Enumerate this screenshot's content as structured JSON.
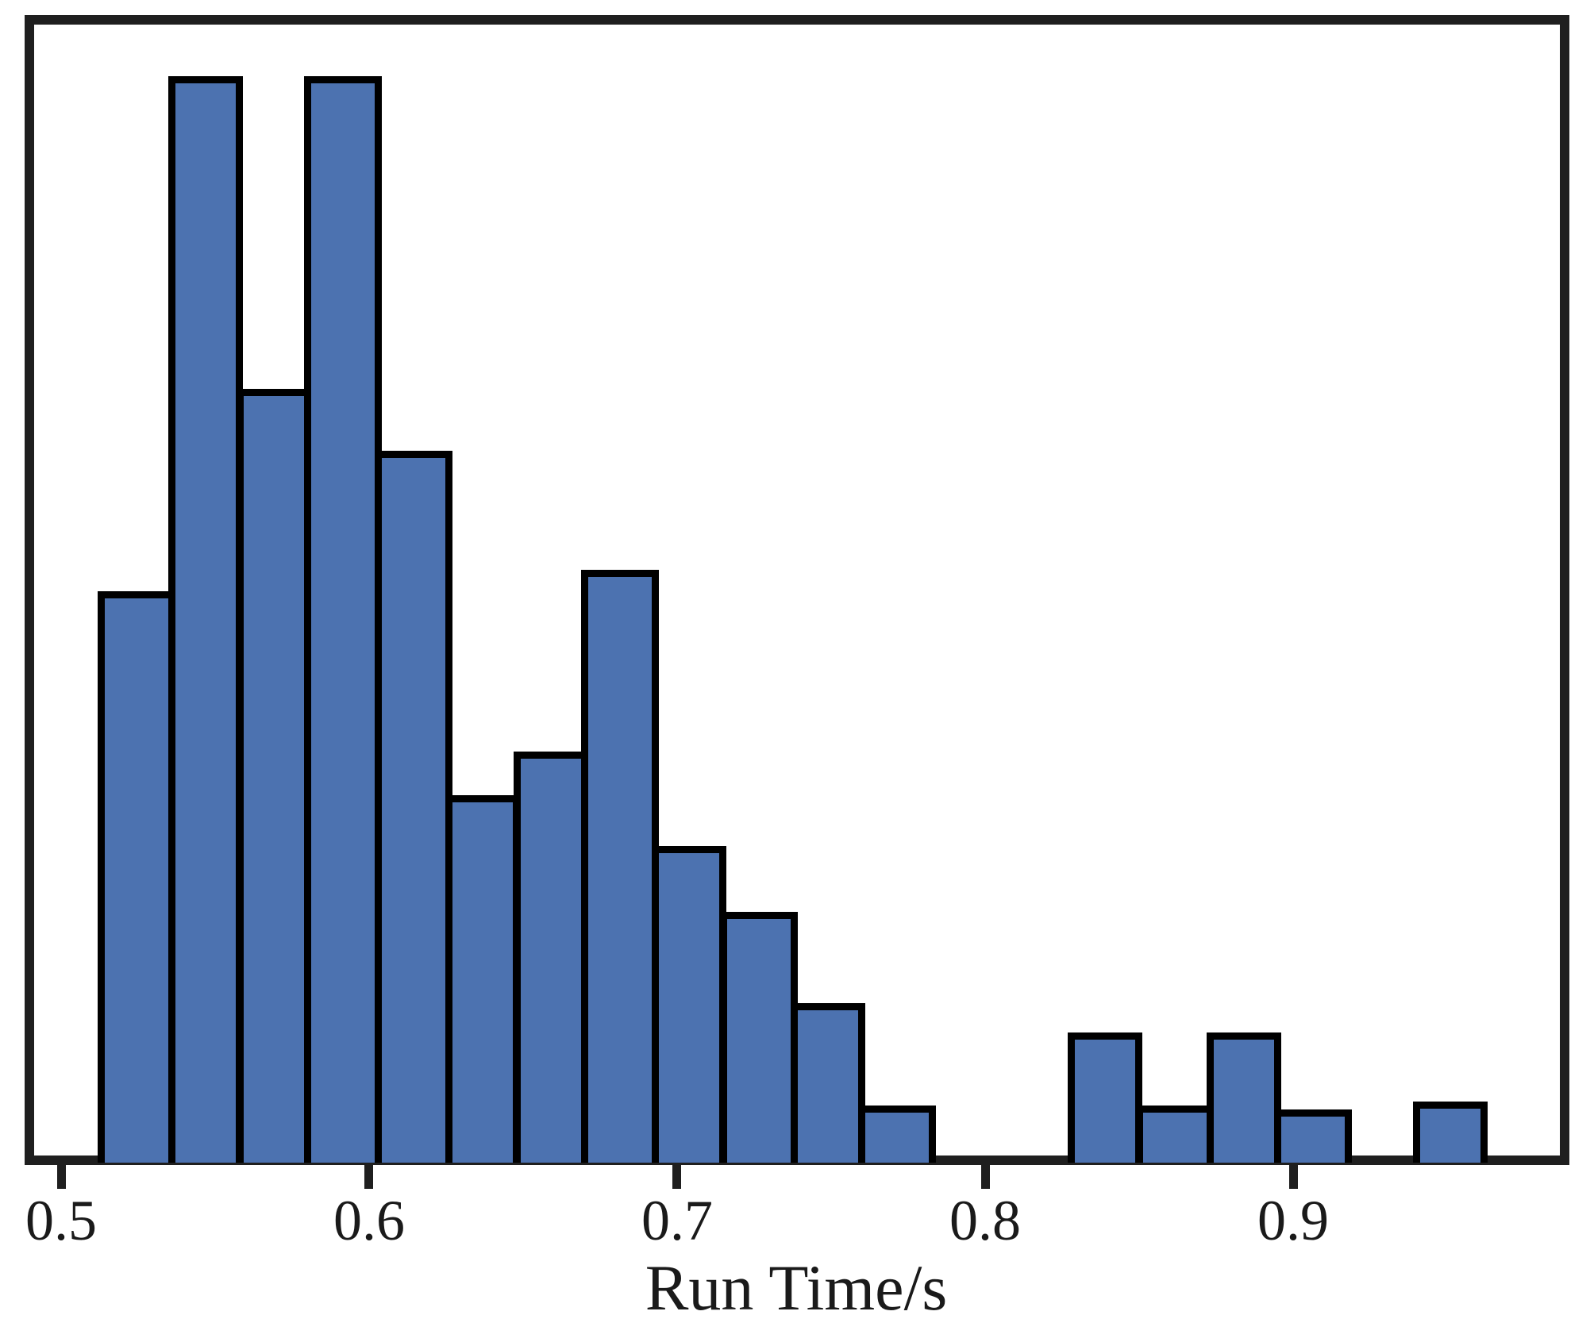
{
  "figure": {
    "xlabel": "Run Time/s"
  },
  "chart_data": {
    "type": "bar",
    "subtype": "histogram",
    "title": "",
    "xlabel": "Run Time/s",
    "ylabel": "",
    "grid": false,
    "legend": null,
    "y_axis_visible": false,
    "xlim": [
      0.491,
      0.987
    ],
    "x_tick_values": [
      0.5,
      0.6,
      0.7,
      0.8,
      0.9
    ],
    "x_tick_labels": [
      "0.5",
      "0.6",
      "0.7",
      "0.8",
      "0.9"
    ],
    "bin_edges": [
      0.513,
      0.536,
      0.558,
      0.58,
      0.603,
      0.626,
      0.648,
      0.67,
      0.693,
      0.715,
      0.738,
      0.76,
      0.783,
      0.805,
      0.828,
      0.85,
      0.873,
      0.895,
      0.918,
      0.94,
      0.962
    ],
    "relative_heights": [
      0.523,
      1.0,
      0.71,
      1.0,
      0.653,
      0.334,
      0.374,
      0.543,
      0.287,
      0.226,
      0.141,
      0.046,
      0.0,
      0.0,
      0.114,
      0.046,
      0.114,
      0.043,
      0.0,
      0.05
    ],
    "colors": {
      "bar_fill": "#4C72B0",
      "bar_edge": "#000000",
      "frame": "#1f1f1f",
      "text": "#1a1a1a",
      "background": "#ffffff"
    }
  }
}
